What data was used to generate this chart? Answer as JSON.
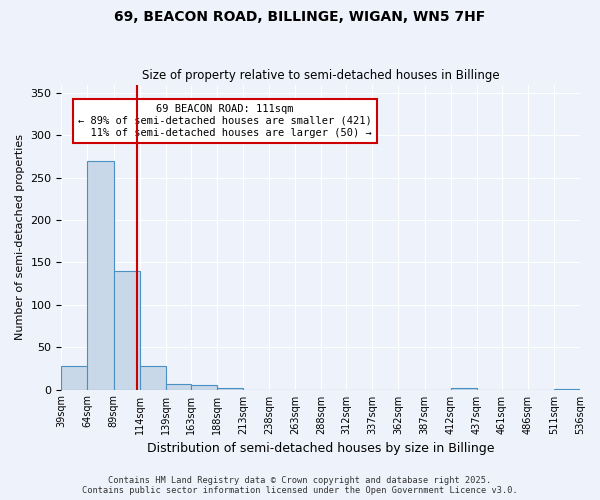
{
  "title_line1": "69, BEACON ROAD, BILLINGE, WIGAN, WN5 7HF",
  "title_line2": "Size of property relative to semi-detached houses in Billinge",
  "xlabel": "Distribution of semi-detached houses by size in Billinge",
  "ylabel": "Number of semi-detached properties",
  "bins": [
    39,
    64,
    89,
    114,
    139,
    163,
    188,
    213,
    238,
    263,
    288,
    312,
    337,
    362,
    387,
    412,
    437,
    461,
    486,
    511,
    536
  ],
  "bin_labels": [
    "39sqm",
    "64sqm",
    "89sqm",
    "114sqm",
    "139sqm",
    "163sqm",
    "188sqm",
    "213sqm",
    "238sqm",
    "263sqm",
    "288sqm",
    "312sqm",
    "337sqm",
    "362sqm",
    "387sqm",
    "412sqm",
    "437sqm",
    "461sqm",
    "486sqm",
    "511sqm",
    "536sqm"
  ],
  "counts": [
    28,
    270,
    140,
    28,
    6,
    5,
    2,
    0,
    0,
    0,
    0,
    0,
    0,
    0,
    0,
    2,
    0,
    0,
    0,
    1
  ],
  "property_size": 111,
  "property_label": "69 BEACON ROAD: 111sqm",
  "pct_smaller": 89,
  "pct_larger": 11,
  "n_smaller": 421,
  "n_larger": 50,
  "bar_color": "#c8d8e8",
  "bar_edge_color": "#4a90c4",
  "vline_color": "#cc0000",
  "annotation_box_color": "#cc0000",
  "background_color": "#eef2fa",
  "ylim": [
    0,
    360
  ],
  "yticks": [
    0,
    50,
    100,
    150,
    200,
    250,
    300,
    350
  ],
  "footer_line1": "Contains HM Land Registry data © Crown copyright and database right 2025.",
  "footer_line2": "Contains public sector information licensed under the Open Government Licence v3.0."
}
